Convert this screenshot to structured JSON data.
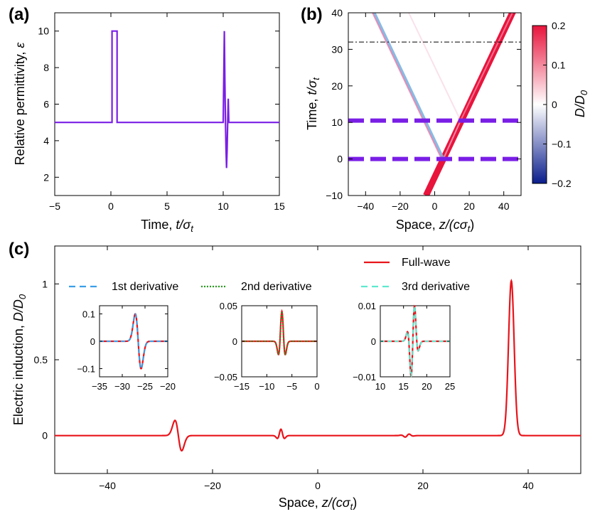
{
  "panels": {
    "a": {
      "label": "(a)",
      "xlabel": "Time, ",
      "xlabel_var": "t/σ",
      "xlabel_sub": "t",
      "ylabel": "Relative permittivity, ",
      "ylabel_var": "ε"
    },
    "b": {
      "label": "(b)",
      "xlabel": "Space, ",
      "xlabel_var": "z/(cσ",
      "xlabel_sub": "t",
      "xlabel_end": ")",
      "ylabel": "Time, ",
      "ylabel_var": "t/σ",
      "ylabel_sub": "t",
      "colorbar_label": "D/D",
      "colorbar_sub": "0",
      "colorbar_ticks": [
        "0.2",
        "0.1",
        "0",
        "−0.1",
        "−0.2"
      ]
    },
    "c": {
      "label": "(c)",
      "xlabel": "Space, ",
      "xlabel_var": "z/(cσ",
      "xlabel_sub": "t",
      "xlabel_end": ")",
      "ylabel": "Electric induction, ",
      "ylabel_var": "D/D",
      "ylabel_sub": "0",
      "legend": [
        {
          "name": "Full-wave",
          "color": "#e8141b",
          "style": "solid"
        },
        {
          "name": "1st derivative",
          "color": "#3a9fe8",
          "style": "dashed"
        },
        {
          "name": "2nd derivative",
          "color": "#2a9a20",
          "style": "dotted"
        },
        {
          "name": "3rd derivative",
          "color": "#5ee8cf",
          "style": "dashed"
        }
      ]
    }
  },
  "chart_data": [
    {
      "id": "a",
      "type": "line",
      "xlim": [
        -5,
        15
      ],
      "ylim": [
        1,
        11
      ],
      "xticks": [
        "−5",
        "0",
        "5",
        "10",
        "15"
      ],
      "xtick_values": [
        -5,
        0,
        5,
        10,
        15
      ],
      "yticks": [
        "2",
        "4",
        "6",
        "8",
        "10"
      ],
      "ytick_values": [
        2,
        4,
        6,
        8,
        10
      ],
      "series": [
        {
          "name": "permittivity",
          "color": "#7a1ee6",
          "x": [
            -5,
            0.1,
            0.1,
            0.55,
            0.55,
            10.0,
            10.05,
            10.1,
            10.15,
            10.2,
            10.25,
            10.3,
            10.35,
            10.4,
            10.45,
            10.5,
            10.55,
            10.6,
            15
          ],
          "y": [
            5,
            5,
            10,
            10,
            5,
            5,
            7.5,
            10,
            7.2,
            5,
            3.6,
            2.5,
            3.5,
            5,
            6.3,
            5,
            5,
            5,
            5
          ]
        }
      ]
    },
    {
      "id": "b",
      "type": "heatmap",
      "xlim": [
        -50,
        50
      ],
      "ylim": [
        -10,
        40
      ],
      "xticks": [
        "−40",
        "−20",
        "0",
        "20",
        "40"
      ],
      "xtick_values": [
        -40,
        -20,
        0,
        20,
        40
      ],
      "yticks": [
        "−10",
        "0",
        "10",
        "20",
        "30",
        "40"
      ],
      "ytick_values": [
        -10,
        0,
        10,
        20,
        30,
        40
      ],
      "colorbar": {
        "min": -0.2,
        "max": 0.2,
        "colors": [
          "#0a1d8c",
          "#ffffff",
          "#e8143c"
        ]
      },
      "interfaces_t": [
        0,
        10.5
      ],
      "probe_time": 32,
      "rays": [
        {
          "from": [
            -5,
            -10
          ],
          "to": [
            50,
            45
          ],
          "color": "#e8143c",
          "width": 9,
          "opacity": 1.0
        },
        {
          "from": [
            5,
            0
          ],
          "to": [
            -35,
            40
          ],
          "color": "#7bb4e0",
          "width": 4,
          "opacity": 0.9
        },
        {
          "from": [
            4,
            0
          ],
          "to": [
            -36,
            40
          ],
          "color": "#ef7aa8",
          "width": 2,
          "opacity": 0.8
        },
        {
          "from": [
            5,
            0
          ],
          "to": [
            15,
            10.5
          ],
          "color": "#f2a8c4",
          "width": 2,
          "opacity": 0.8
        },
        {
          "from": [
            15,
            10.5
          ],
          "to": [
            45,
            40
          ],
          "color": "#f5bcd3",
          "width": 2,
          "opacity": 0.55
        },
        {
          "from": [
            15,
            10.5
          ],
          "to": [
            -15,
            40
          ],
          "color": "#f5bcd3",
          "width": 2,
          "opacity": 0.45
        }
      ]
    },
    {
      "id": "c",
      "type": "line",
      "xlim": [
        -50,
        50
      ],
      "ylim": [
        -0.25,
        1.25
      ],
      "xticks": [
        "−40",
        "−20",
        "0",
        "20",
        "40"
      ],
      "xtick_values": [
        -40,
        -20,
        0,
        20,
        40
      ],
      "yticks": [
        "0",
        "0.5",
        "1"
      ],
      "ytick_values": [
        0,
        0.5,
        1
      ],
      "pulses": [
        {
          "kind": "gauss",
          "center": 36.8,
          "amp": 1.02,
          "width": 0.75
        },
        {
          "kind": "deriv1",
          "center": -26.5,
          "amp": 0.1,
          "width": 0.9
        },
        {
          "kind": "deriv2",
          "center": -7.0,
          "amp": 0.042,
          "width": 0.55
        },
        {
          "kind": "deriv3",
          "center": 17.0,
          "amp": 0.009,
          "width": 0.7
        }
      ],
      "insets": [
        {
          "xlim": [
            -35,
            -20
          ],
          "ylim": [
            -0.13,
            0.13
          ],
          "xticks": [
            "−35",
            "−30",
            "−25",
            "−20"
          ],
          "xtick_values": [
            -35,
            -30,
            -25,
            -20
          ],
          "yticks": [
            "0.1",
            "0",
            "−0.1"
          ],
          "ytick_values": [
            0.1,
            0,
            -0.1
          ],
          "pulse": 1,
          "overlay_color": "#3a9fe8",
          "overlay_style": "dashed"
        },
        {
          "xlim": [
            -15,
            0
          ],
          "ylim": [
            -0.05,
            0.05
          ],
          "xticks": [
            "−15",
            "−10",
            "−5",
            "0"
          ],
          "xtick_values": [
            -15,
            -10,
            -5,
            0
          ],
          "yticks": [
            "0.05",
            "0",
            "−0.05"
          ],
          "ytick_values": [
            0.05,
            0,
            -0.05
          ],
          "pulse": 2,
          "overlay_color": "#2a9a20",
          "overlay_style": "dotted"
        },
        {
          "xlim": [
            10,
            25
          ],
          "ylim": [
            -0.01,
            0.01
          ],
          "xticks": [
            "10",
            "15",
            "20",
            "25"
          ],
          "xtick_values": [
            10,
            15,
            20,
            25
          ],
          "yticks": [
            "0.01",
            "0",
            "−0.01"
          ],
          "ytick_values": [
            0.01,
            0,
            -0.01
          ],
          "pulse": 3,
          "overlay_color": "#5ee8cf",
          "overlay_style": "dashed"
        }
      ]
    }
  ]
}
